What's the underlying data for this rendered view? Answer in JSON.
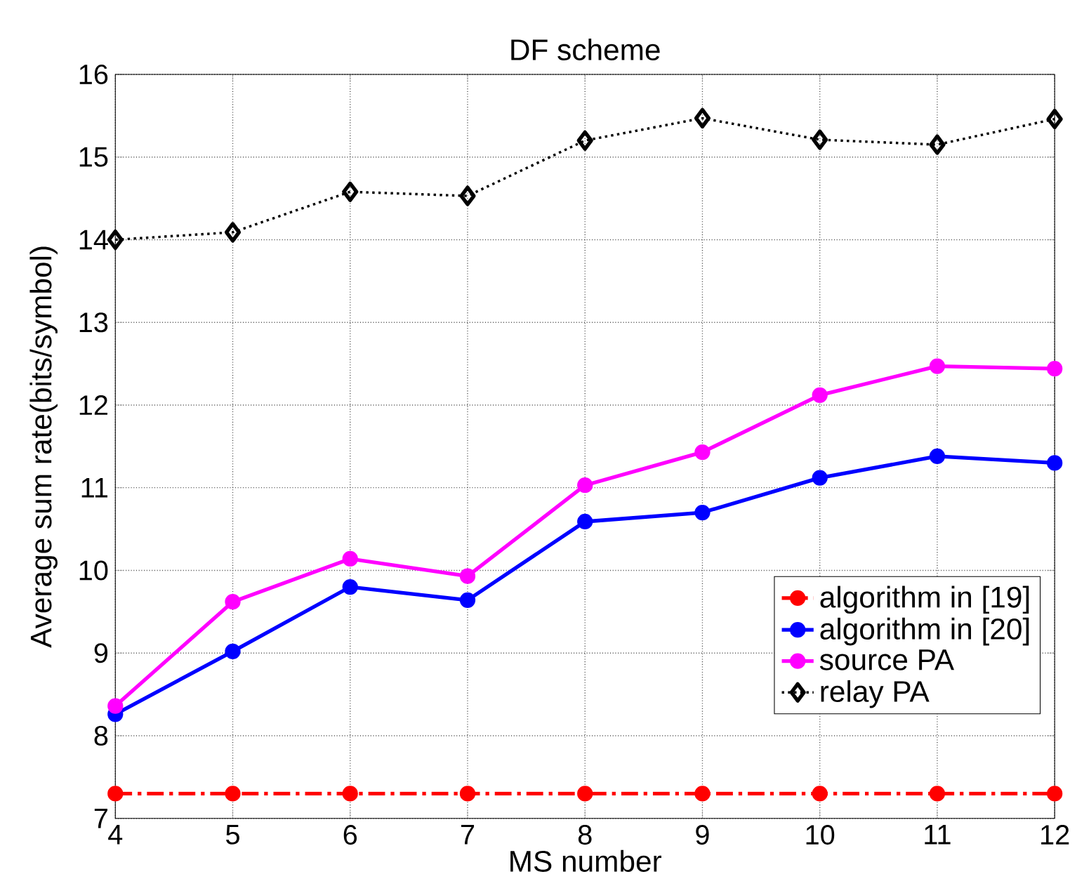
{
  "chart_data": {
    "type": "line",
    "title": "DF scheme",
    "xlabel": "MS number",
    "ylabel": "Average sum rate(bits/symbol)",
    "x": [
      4,
      5,
      6,
      7,
      8,
      9,
      10,
      11,
      12
    ],
    "xlim": [
      4,
      12
    ],
    "xticks": [
      4,
      5,
      6,
      7,
      8,
      9,
      10,
      11,
      12
    ],
    "ylim": [
      7,
      16
    ],
    "yticks": [
      7,
      8,
      9,
      10,
      11,
      12,
      13,
      14,
      15,
      16
    ],
    "grid": true,
    "legend": "bottom right",
    "series": [
      {
        "name": "algorithm in [19]",
        "color": "#ff0000",
        "marker": "circle",
        "line_style": "dashdot",
        "values": [
          7.3,
          7.3,
          7.3,
          7.3,
          7.3,
          7.3,
          7.3,
          7.3,
          7.3
        ]
      },
      {
        "name": "algorithm in [20]",
        "color": "#0000ff",
        "marker": "circle",
        "line_style": "solid",
        "values": [
          8.26,
          9.02,
          9.8,
          9.64,
          10.59,
          10.7,
          11.12,
          11.38,
          11.3
        ]
      },
      {
        "name": "source PA",
        "color": "#ff00ff",
        "marker": "circle",
        "line_style": "solid",
        "values": [
          8.36,
          9.62,
          10.14,
          9.93,
          11.03,
          11.43,
          12.12,
          12.47,
          12.44
        ]
      },
      {
        "name": "relay PA",
        "color": "#000000",
        "marker": "diamond",
        "line_style": "dotted",
        "values": [
          14.0,
          14.09,
          14.58,
          14.53,
          15.2,
          15.47,
          15.21,
          15.15,
          15.46
        ]
      }
    ]
  }
}
